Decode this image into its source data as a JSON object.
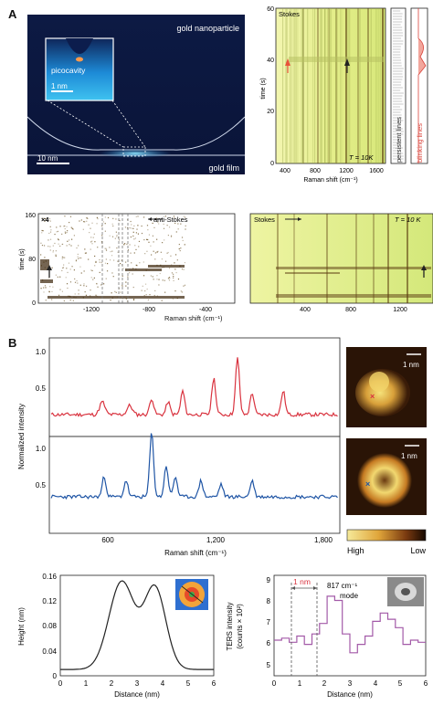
{
  "panels": {
    "a": "A",
    "b": "B"
  },
  "schematic": {
    "title": "gold nanoparticle",
    "inset_label": "picocavity",
    "inset_scale": "1 nm",
    "scale": "10 nm",
    "film": "gold film"
  },
  "spectro_top": {
    "label": "Stokes",
    "ylabel": "time (s)",
    "xlabel": "Raman shift (cm⁻¹)",
    "temp": "T = 10K",
    "xticks": [
      "400",
      "800",
      "1200",
      "1600"
    ],
    "yticks": [
      "0",
      "20",
      "40",
      "60"
    ]
  },
  "side_bars": {
    "persistent": "persistent lines",
    "blinking": "blinking lines"
  },
  "spectro_mid": {
    "left_mult": "×4",
    "anti": "anti-Stokes",
    "stokes": "Stokes",
    "temp": "T = 10 K",
    "ylabel": "time (s)",
    "xlabel": "Raman shift (cm⁻¹)",
    "yticks": [
      "0",
      "80",
      "160"
    ],
    "left_xticks": [
      "-1200",
      "-800",
      "-400"
    ],
    "right_xticks": [
      "400",
      "800",
      "1200"
    ]
  },
  "spectra": {
    "ylabel": "Normalized intensity",
    "xlabel": "Raman shift (cm⁻¹)",
    "yticks": [
      "0.5",
      "1.0"
    ],
    "xticks": [
      "600",
      "1,200",
      "1,800"
    ],
    "red_color": "#d9333f",
    "blue_color": "#1f55a5"
  },
  "maps": {
    "scale1": "1 nm",
    "scale2": "1 nm",
    "high": "High",
    "low": "Low"
  },
  "height_plot": {
    "ylabel": "Height (nm)",
    "xlabel": "Distance (nm)",
    "yticks": [
      "0",
      "0.04",
      "0.08",
      "0.12",
      "0.16"
    ],
    "xticks": [
      "0",
      "1",
      "2",
      "3",
      "4",
      "5",
      "6"
    ]
  },
  "ters_plot": {
    "ylabel": "TERS intensity",
    "ylabel2": "(counts × 10²)",
    "xlabel": "Distance (nm)",
    "yticks": [
      "5",
      "6",
      "7",
      "8",
      "9"
    ],
    "xticks": [
      "0",
      "1",
      "2",
      "3",
      "4",
      "5",
      "6"
    ],
    "annot": "1 nm",
    "mode1": "817 cm⁻¹",
    "mode2": "mode"
  }
}
